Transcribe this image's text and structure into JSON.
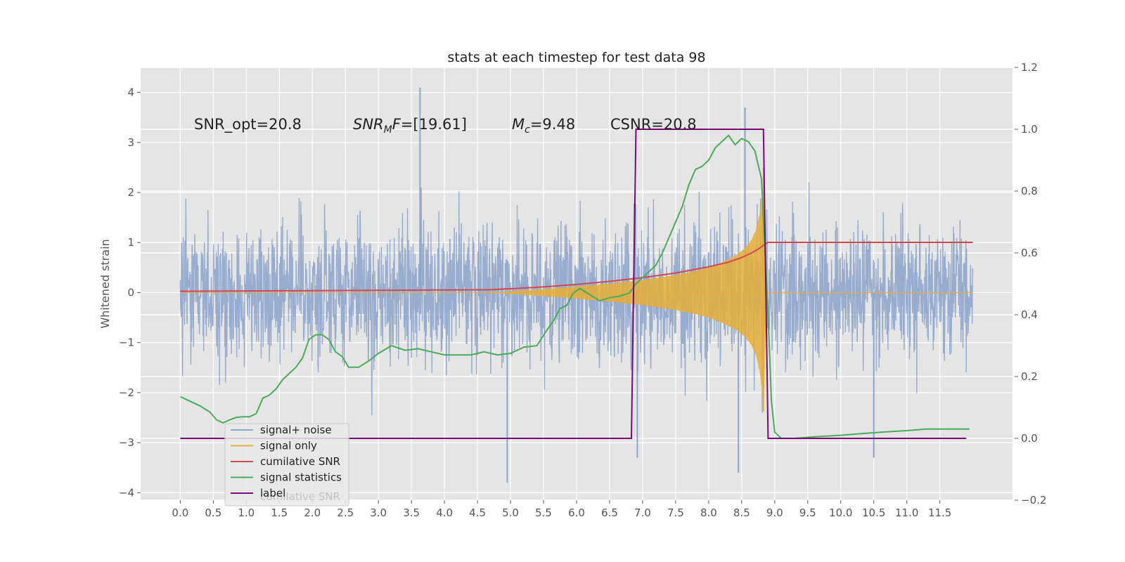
{
  "chart_data": {
    "type": "line",
    "title": "stats at each timestep for test data 98",
    "ylabel": "Whitened strain",
    "xlim": [
      -0.6,
      12.6
    ],
    "ylim": [
      -4.15,
      4.5
    ],
    "y2lim": [
      -0.2,
      1.2
    ],
    "x_ticks": [
      0.0,
      0.5,
      1.0,
      1.5,
      2.0,
      2.5,
      3.0,
      3.5,
      4.0,
      4.5,
      5.0,
      5.5,
      6.0,
      6.5,
      7.0,
      7.5,
      8.0,
      8.5,
      9.0,
      9.5,
      10.0,
      10.5,
      11.0,
      11.5
    ],
    "x_tick_labels": [
      "0.0",
      "0.5",
      "1.0",
      "1.5",
      "2.0",
      "2.5",
      "3.0",
      "3.5",
      "4.0",
      "4.5",
      "5.0",
      "5.5",
      "6.0",
      "6.5",
      "7.0",
      "7.5",
      "8.0",
      "8.5",
      "9.0",
      "9.5",
      "10.0",
      "10.5",
      "11.0",
      "11.5"
    ],
    "y_ticks": [
      -4,
      -3,
      -2,
      -1,
      0,
      1,
      2,
      3,
      4
    ],
    "y_tick_labels": [
      "−4",
      "−3",
      "−2",
      "−1",
      "0",
      "1",
      "2",
      "3",
      "4"
    ],
    "y2_ticks": [
      -0.2,
      0.0,
      0.2,
      0.4,
      0.6,
      0.8,
      1.0,
      1.2
    ],
    "y2_tick_labels": [
      "−0.2",
      "0.0",
      "0.2",
      "0.4",
      "0.6",
      "0.8",
      "1.0",
      "1.2"
    ],
    "grid": true,
    "legend_position": "bottom-left",
    "annotations": [
      {
        "text": "SNR_opt=20.8",
        "x": 0.2,
        "y": 3.3
      },
      {
        "text": "SNR_MF=[19.61]",
        "x": 2.6,
        "y": 3.3
      },
      {
        "text": "M_c=9.48",
        "x": 5.0,
        "y": 3.3
      },
      {
        "text": "CSNR=20.8",
        "x": 6.5,
        "y": 3.3
      }
    ],
    "series": [
      {
        "name": "signal+ noise",
        "axis": "left",
        "color": "#8ea5cb",
        "description": "noisy whitened strain, roughly within ±2 with spikes to about ±4",
        "x_range": [
          0.0,
          12.0
        ],
        "envelope": [
          1.9,
          2.5
        ],
        "extremes": [
          {
            "x": 3.63,
            "y": 4.1
          },
          {
            "x": 8.55,
            "y": 3.7
          },
          {
            "x": 4.95,
            "y": -3.8
          },
          {
            "x": 8.45,
            "y": -3.6
          },
          {
            "x": 6.92,
            "y": -3.3
          },
          {
            "x": 10.5,
            "y": -3.3
          }
        ]
      },
      {
        "name": "signal only",
        "axis": "left",
        "color": "#e5ae38",
        "description": "chirp signal growing in amplitude until merger near 8.8",
        "envelope_x": [
          0.0,
          4.7,
          5.5,
          6.0,
          6.5,
          7.0,
          7.5,
          7.8,
          8.0,
          8.2,
          8.4,
          8.55,
          8.65,
          8.72,
          8.78,
          8.83,
          8.88,
          12.0
        ],
        "envelope_y": [
          0.0,
          0.0,
          0.07,
          0.12,
          0.18,
          0.25,
          0.35,
          0.43,
          0.5,
          0.6,
          0.73,
          0.88,
          1.05,
          1.25,
          1.6,
          2.2,
          0.0,
          0.0
        ],
        "peak": {
          "x": 8.83,
          "y": 2.5
        }
      },
      {
        "name": "cumilative SNR",
        "axis": "right",
        "color": "#d0494e",
        "x": [
          0.0,
          1.0,
          2.0,
          3.0,
          4.0,
          4.7,
          5.0,
          5.5,
          6.0,
          6.5,
          7.0,
          7.5,
          8.0,
          8.3,
          8.5,
          8.65,
          8.75,
          8.85,
          8.9,
          12.0
        ],
        "values": [
          0.476,
          0.477,
          0.478,
          0.479,
          0.48,
          0.481,
          0.484,
          0.49,
          0.498,
          0.508,
          0.52,
          0.535,
          0.555,
          0.57,
          0.585,
          0.6,
          0.612,
          0.628,
          0.634,
          0.634
        ]
      },
      {
        "name": "signal statistics",
        "axis": "right",
        "color": "#4aab5b",
        "x": [
          0.0,
          0.15,
          0.3,
          0.45,
          0.55,
          0.65,
          0.75,
          0.85,
          0.95,
          1.05,
          1.15,
          1.25,
          1.35,
          1.45,
          1.55,
          1.65,
          1.75,
          1.85,
          1.95,
          2.05,
          2.15,
          2.25,
          2.35,
          2.45,
          2.55,
          2.7,
          2.85,
          3.0,
          3.2,
          3.4,
          3.6,
          3.8,
          4.0,
          4.2,
          4.4,
          4.6,
          4.8,
          5.0,
          5.2,
          5.4,
          5.55,
          5.65,
          5.75,
          5.85,
          5.95,
          6.05,
          6.2,
          6.35,
          6.5,
          6.65,
          6.8,
          6.9,
          7.0,
          7.1,
          7.2,
          7.3,
          7.4,
          7.5,
          7.6,
          7.7,
          7.8,
          7.9,
          8.0,
          8.1,
          8.2,
          8.3,
          8.4,
          8.5,
          8.6,
          8.7,
          8.8,
          8.9,
          8.95,
          9.0,
          9.1,
          9.3,
          9.6,
          10.0,
          10.3,
          10.6,
          11.0,
          11.3,
          11.6,
          11.95
        ],
        "values": [
          0.135,
          0.12,
          0.105,
          0.085,
          0.06,
          0.05,
          0.06,
          0.068,
          0.07,
          0.07,
          0.08,
          0.13,
          0.14,
          0.16,
          0.19,
          0.21,
          0.23,
          0.26,
          0.32,
          0.335,
          0.335,
          0.32,
          0.28,
          0.265,
          0.23,
          0.23,
          0.25,
          0.275,
          0.3,
          0.285,
          0.29,
          0.28,
          0.27,
          0.27,
          0.27,
          0.28,
          0.27,
          0.275,
          0.295,
          0.3,
          0.35,
          0.38,
          0.42,
          0.43,
          0.47,
          0.485,
          0.465,
          0.445,
          0.455,
          0.46,
          0.47,
          0.5,
          0.52,
          0.54,
          0.56,
          0.6,
          0.65,
          0.7,
          0.75,
          0.82,
          0.87,
          0.88,
          0.9,
          0.94,
          0.96,
          0.98,
          0.95,
          0.97,
          0.96,
          0.93,
          0.84,
          0.4,
          0.12,
          0.02,
          0.0,
          0.0,
          0.005,
          0.01,
          0.015,
          0.02,
          0.025,
          0.03,
          0.03,
          0.03
        ]
      },
      {
        "name": "label",
        "axis": "right",
        "color": "#7a0a7a",
        "x": [
          0.0,
          6.83,
          6.9,
          8.83,
          8.9,
          11.9
        ],
        "values": [
          0.0,
          0.0,
          1.0,
          1.0,
          0.0,
          0.0
        ]
      }
    ],
    "legend_overlap_text": "cumilative SNR"
  }
}
